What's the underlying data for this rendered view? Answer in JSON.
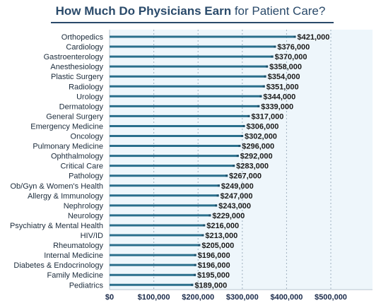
{
  "colors": {
    "bar": "#2a6f8c",
    "bar_end": "#1d4f6a",
    "plot_bg": "#eef6fb",
    "grid": "#9fb0bf",
    "title": "#2a4a6a"
  },
  "chart_data": {
    "type": "bar",
    "orientation": "horizontal",
    "title_bold": "How Much Do Physicians Earn",
    "title_light": "for Patient Care?",
    "categories": [
      "Orthopedics",
      "Cardiology",
      "Gastroenterology",
      "Anesthesiology",
      "Plastic Surgery",
      "Radiology",
      "Urology",
      "Dermatology",
      "General Surgery",
      "Emergency Medicine",
      "Oncology",
      "Pulmonary Medicine",
      "Ophthalmology",
      "Critical Care",
      "Pathology",
      "Ob/Gyn & Women's Health",
      "Allergy & Immunology",
      "Nephrology",
      "Neurology",
      "Psychiatry & Mental Health",
      "HIV/ID",
      "Rheumatology",
      "Internal Medicine",
      "Diabetes & Endocrinology",
      "Family Medicine",
      "Pediatrics"
    ],
    "values": [
      421000,
      376000,
      370000,
      358000,
      354000,
      351000,
      344000,
      339000,
      317000,
      306000,
      302000,
      296000,
      292000,
      283000,
      267000,
      249000,
      247000,
      243000,
      229000,
      216000,
      213000,
      205000,
      196000,
      196000,
      195000,
      189000
    ],
    "value_labels": [
      "$421,000",
      "$376,000",
      "$370,000",
      "$358,000",
      "$354,000",
      "$351,000",
      "$344,000",
      "$339,000",
      "$317,000",
      "$306,000",
      "$302,000",
      "$296,000",
      "$292,000",
      "$283,000",
      "$267,000",
      "$249,000",
      "$247,000",
      "$243,000",
      "$229,000",
      "$216,000",
      "$213,000",
      "$205,000",
      "$196,000",
      "$196,000",
      "$195,000",
      "$189,000"
    ],
    "x_ticks": [
      0,
      100000,
      200000,
      300000,
      400000,
      500000
    ],
    "x_tick_labels": [
      "$0",
      "$100,000",
      "$200,000",
      "$300,000",
      "$400,000",
      "$500,000"
    ],
    "xlim": [
      0,
      600000
    ],
    "grid": true,
    "xlabel": "",
    "ylabel": ""
  }
}
